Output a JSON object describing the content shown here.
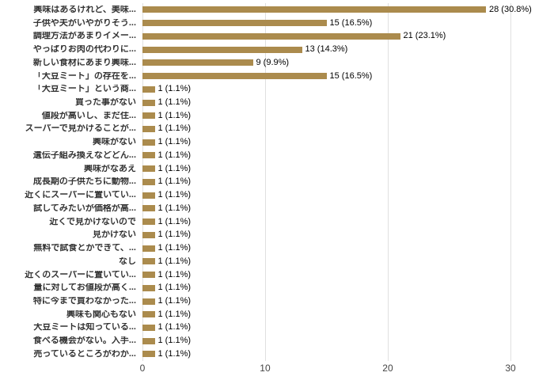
{
  "chart_data": {
    "type": "bar",
    "orientation": "horizontal",
    "title": "",
    "xlabel": "",
    "ylabel": "",
    "xlim": [
      0,
      30
    ],
    "x_ticks": [
      0,
      10,
      20,
      30
    ],
    "grid": true,
    "legend": "none",
    "total_responses": 91,
    "bar_color": "#AB8B4D",
    "grid_color": "#e0e0e0",
    "category_label_color": "#333333",
    "value_label_color": "#000000",
    "tick_label_color": "#444444",
    "categories": [
      "興味はあるけれど、美味...",
      "子供や夫がいやがりそう...",
      "調理方法があまりイメー...",
      "やっぱりお肉の代わりに...",
      "新しい食材にあまり興味...",
      "「大豆ミート」の存在を...",
      "「大豆ミート」という商...",
      "買った事がない",
      "値段が高いし、まだ住...",
      "スーパーで見かけることが...",
      "興味がない",
      "遺伝子組み換えなどどん...",
      "興味がなあえ",
      "成長期の子供たちに動物...",
      "近くにスーパーに置いてい...",
      "試してみたいが価格が高...",
      "近くで見かけないので",
      "見かけない",
      "無料で試食とかできて、...",
      "なし",
      "近くのスーパーに置いてい...",
      "量に対してお値段が高く...",
      "特に今まで買わなかった...",
      "興味も関心もない",
      "大豆ミートは知っている...",
      "食べる機会がない。入手...",
      "売っているところがわか..."
    ],
    "values": [
      28,
      15,
      21,
      13,
      9,
      15,
      1,
      1,
      1,
      1,
      1,
      1,
      1,
      1,
      1,
      1,
      1,
      1,
      1,
      1,
      1,
      1,
      1,
      1,
      1,
      1,
      1
    ],
    "value_labels": [
      "28 (30.8%)",
      "15 (16.5%)",
      "21 (23.1%)",
      "13 (14.3%)",
      "9 (9.9%)",
      "15 (16.5%)",
      "1 (1.1%)",
      "1 (1.1%)",
      "1 (1.1%)",
      "1 (1.1%)",
      "1 (1.1%)",
      "1 (1.1%)",
      "1 (1.1%)",
      "1 (1.1%)",
      "1 (1.1%)",
      "1 (1.1%)",
      "1 (1.1%)",
      "1 (1.1%)",
      "1 (1.1%)",
      "1 (1.1%)",
      "1 (1.1%)",
      "1 (1.1%)",
      "1 (1.1%)",
      "1 (1.1%)",
      "1 (1.1%)",
      "1 (1.1%)",
      "1 (1.1%)"
    ]
  }
}
